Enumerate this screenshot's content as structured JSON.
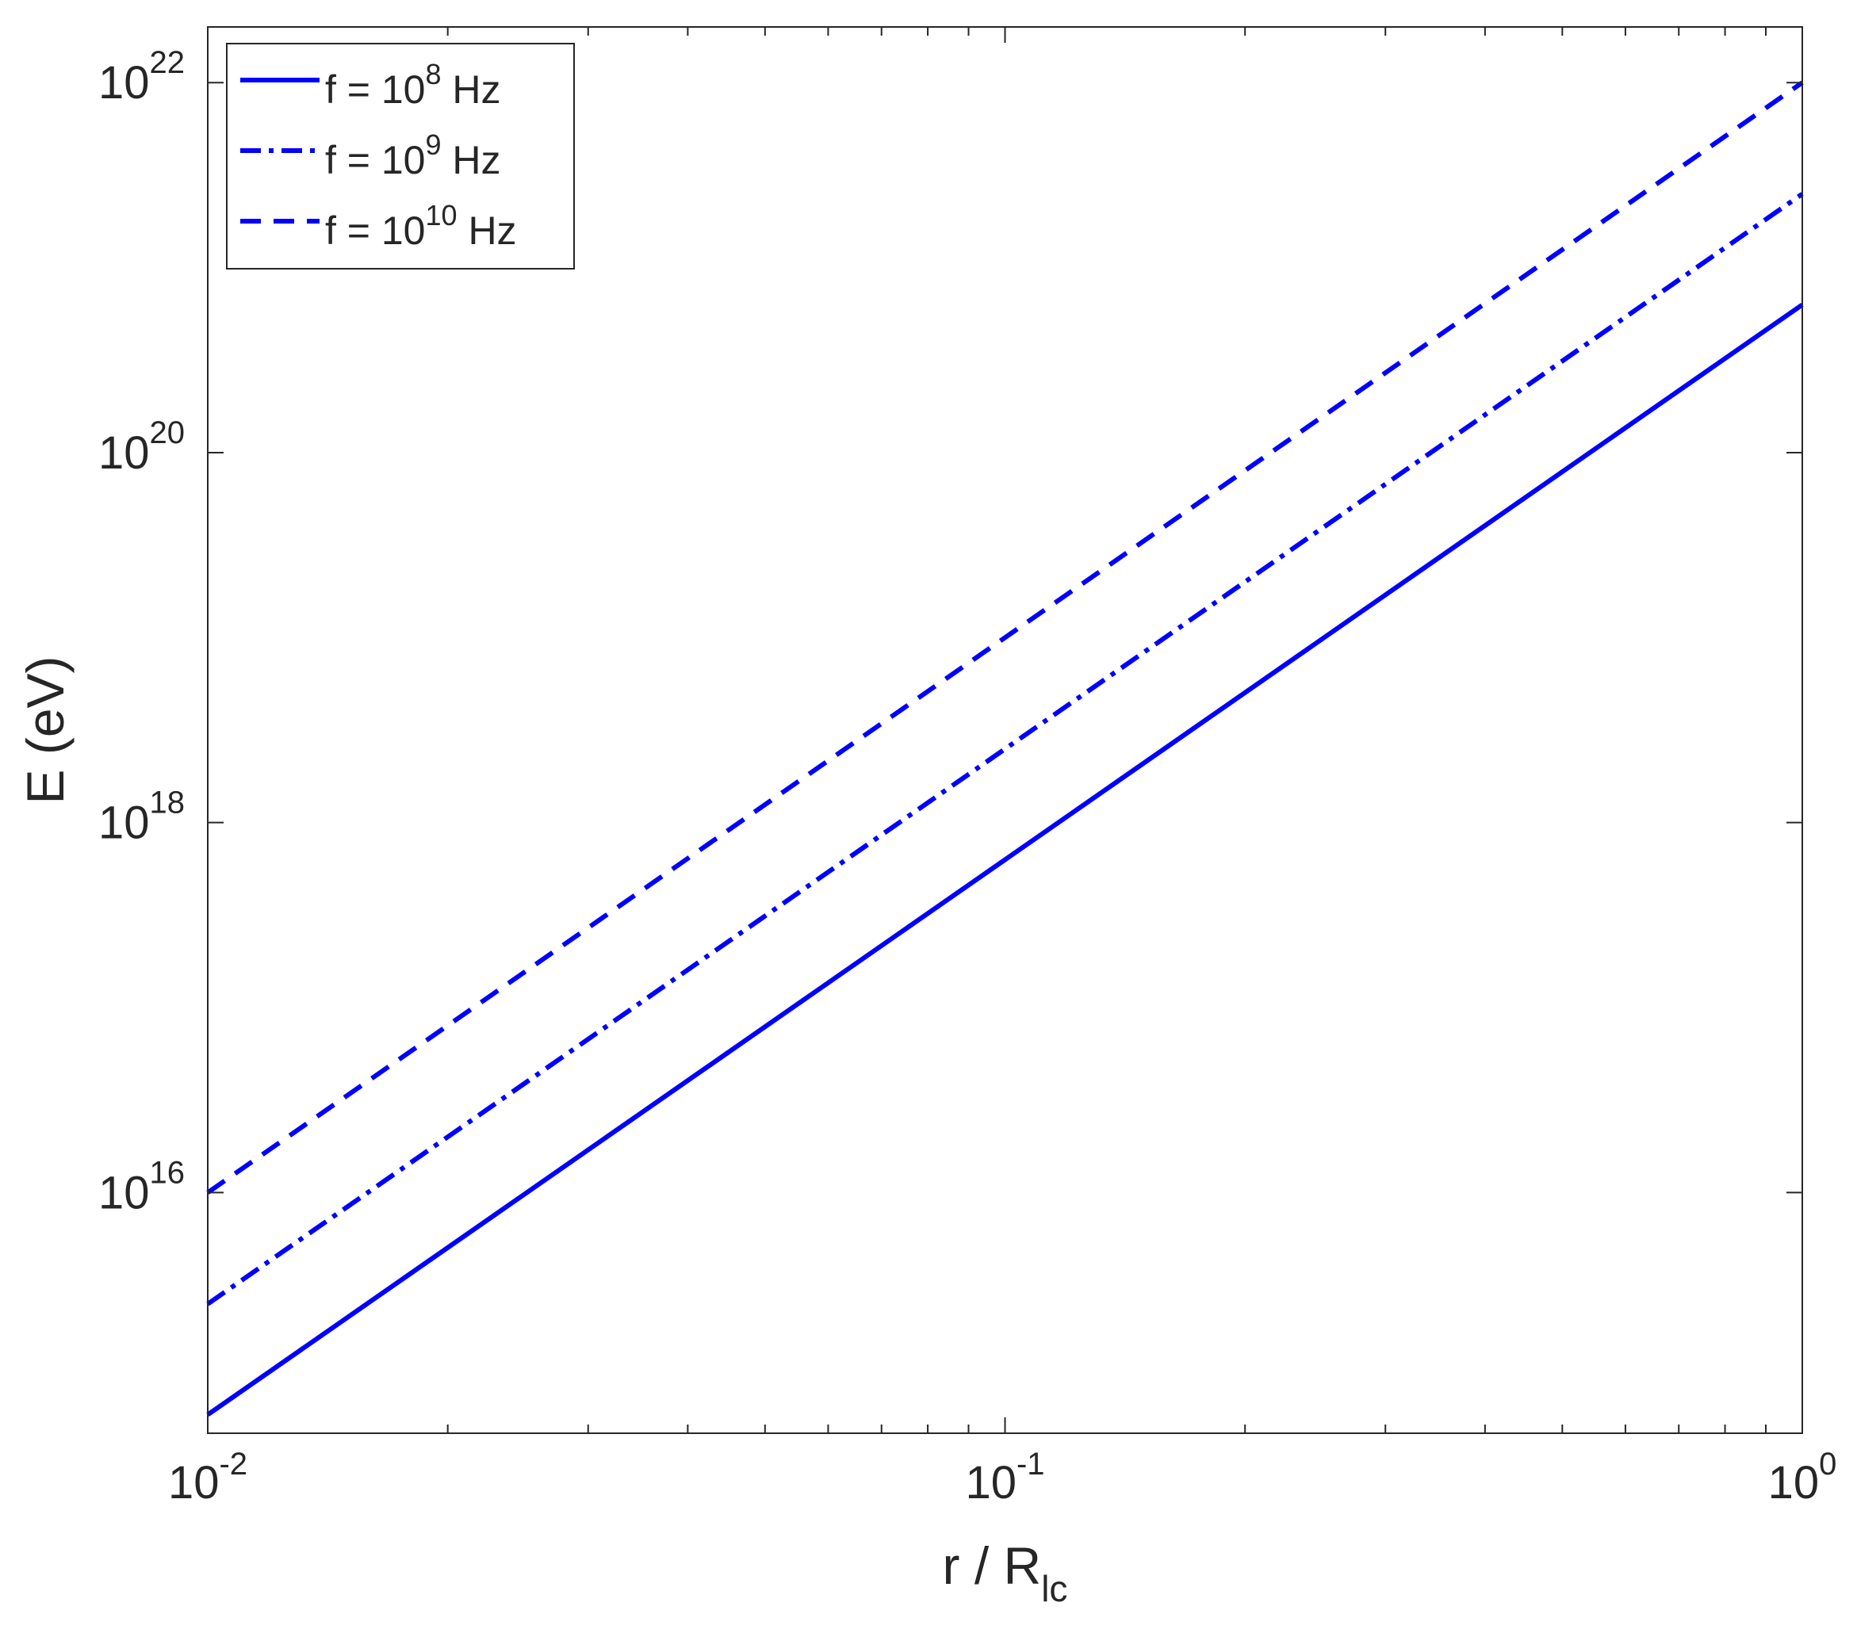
{
  "chart_data": {
    "type": "line",
    "xscale": "log",
    "yscale": "log",
    "xlim": [
      0.01,
      1
    ],
    "ylim": [
      500000000000000.0,
      2e+22
    ],
    "xlabel": {
      "main": "r / R",
      "sub": "lc"
    },
    "ylabel": "E (eV)",
    "x_ticks": [
      {
        "value": 0.01,
        "base": "10",
        "exp": "-2"
      },
      {
        "value": 0.1,
        "base": "10",
        "exp": "-1"
      },
      {
        "value": 1,
        "base": "10",
        "exp": "0"
      }
    ],
    "y_ticks": [
      {
        "value": 1e+16,
        "base": "10",
        "exp": "16"
      },
      {
        "value": 1e+18,
        "base": "10",
        "exp": "18"
      },
      {
        "value": 1e+20,
        "base": "10",
        "exp": "20"
      },
      {
        "value": 1e+22,
        "base": "10",
        "exp": "22"
      }
    ],
    "grid": false,
    "legend_position": "top-left",
    "series_color": "#0000ff",
    "series": [
      {
        "name": "f = 10^8 Hz",
        "legend": {
          "prefix": "f = 10",
          "exp": "8",
          "suffix": " Hz"
        },
        "style": "solid",
        "x": [
          0.01,
          1
        ],
        "y": [
          630000000000000.0,
          6.3e+20
        ]
      },
      {
        "name": "f = 10^9 Hz",
        "legend": {
          "prefix": "f = 10",
          "exp": "9",
          "suffix": " Hz"
        },
        "style": "dashdot",
        "x": [
          0.01,
          1
        ],
        "y": [
          2500000000000000.0,
          2.5e+21
        ]
      },
      {
        "name": "f = 10^10 Hz",
        "legend": {
          "prefix": "f = 10",
          "exp": "10",
          "suffix": " Hz"
        },
        "style": "dashed",
        "x": [
          0.01,
          1
        ],
        "y": [
          1e+16,
          1e+22
        ]
      }
    ]
  }
}
